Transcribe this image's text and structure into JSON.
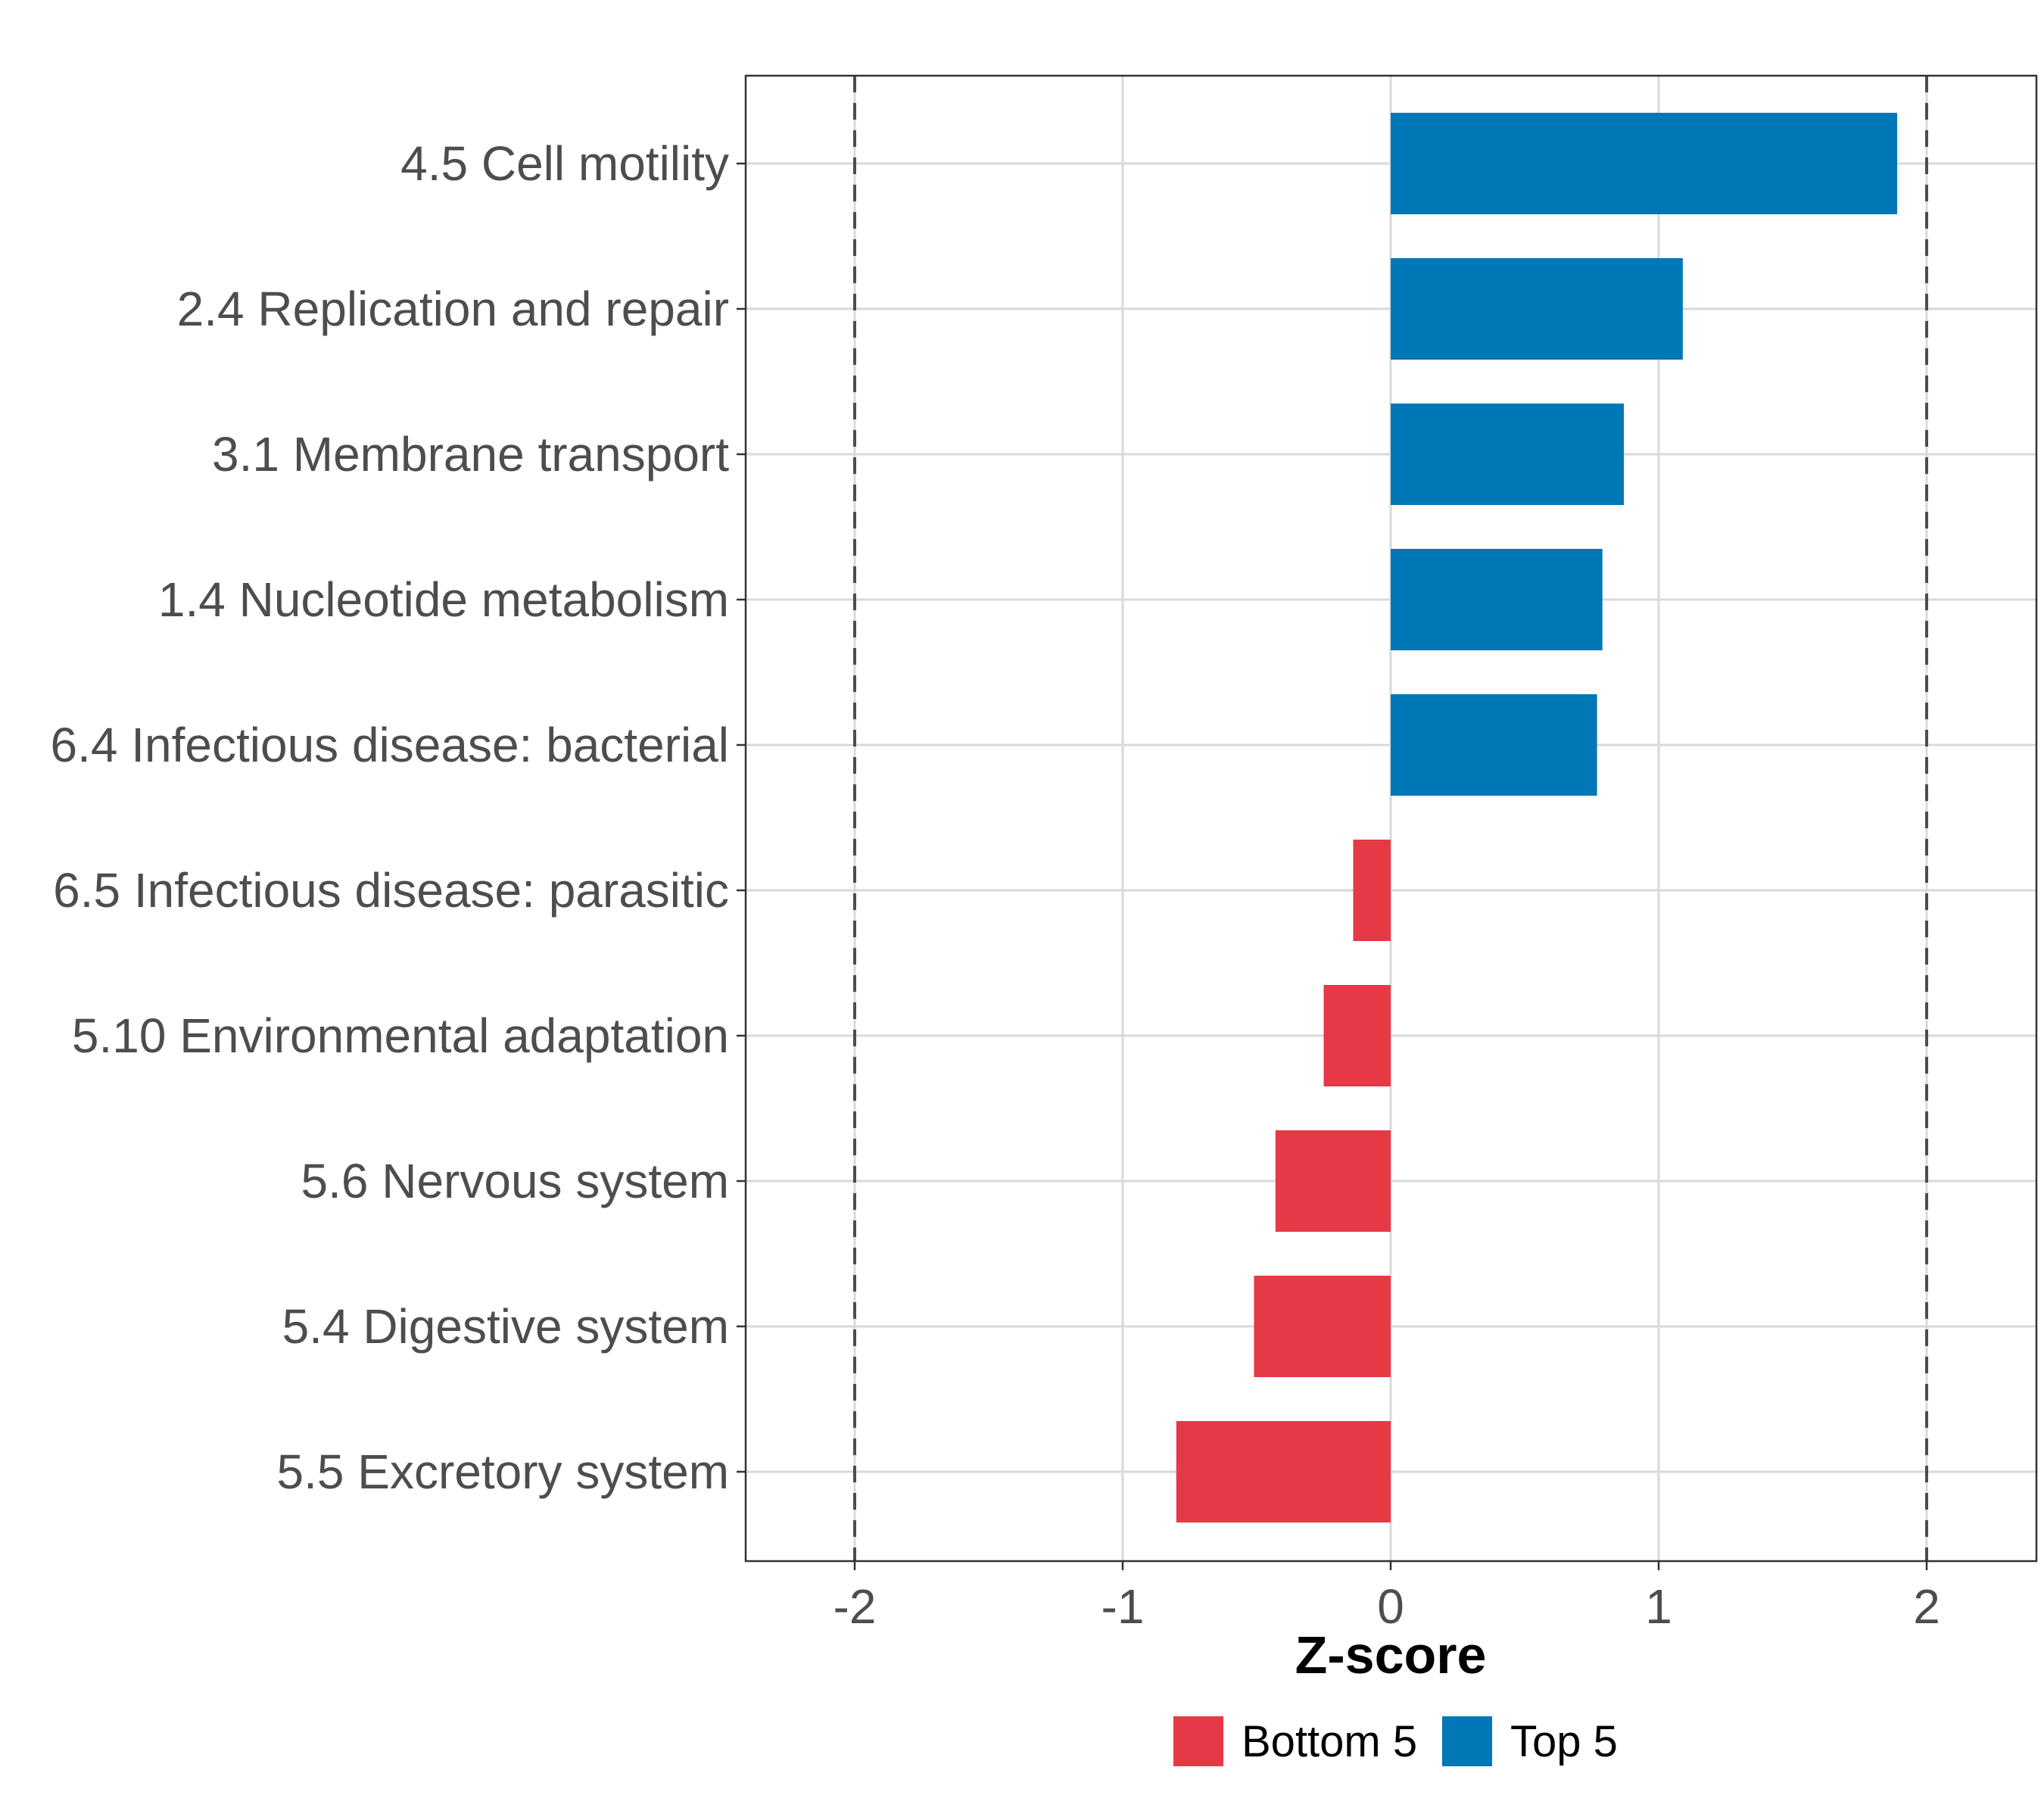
{
  "chart_data": {
    "type": "bar",
    "orientation": "horizontal",
    "title": "",
    "xlabel": "Z-score",
    "ylabel": "",
    "xlim": [
      -2.4,
      2.4
    ],
    "xticks": [
      "-2",
      "-1",
      "0",
      "1",
      "2"
    ],
    "xtick_values": [
      -2,
      -1,
      0,
      1,
      2
    ],
    "reference_lines": [
      -2,
      2
    ],
    "grid": true,
    "categories": [
      "4.5 Cell motility",
      "2.4 Replication and repair",
      "3.1 Membrane transport",
      "1.4 Nucleotide metabolism",
      "6.4 Infectious disease: bacterial",
      "6.5 Infectious disease: parasitic",
      "5.10 Environmental adaptation",
      "5.6 Nervous system",
      "5.4 Digestive system",
      "5.5 Excretory system"
    ],
    "values": [
      1.89,
      1.09,
      0.87,
      0.79,
      0.77,
      -0.14,
      -0.25,
      -0.43,
      -0.51,
      -0.8
    ],
    "groups": [
      "Top 5",
      "Top 5",
      "Top 5",
      "Top 5",
      "Top 5",
      "Bottom 5",
      "Bottom 5",
      "Bottom 5",
      "Bottom 5",
      "Bottom 5"
    ],
    "legend": {
      "position": "bottom",
      "entries": [
        {
          "label": "Bottom 5",
          "color": "#E63946"
        },
        {
          "label": "Top 5",
          "color": "#0077B6"
        }
      ]
    }
  },
  "colors": {
    "top": "#0077B6",
    "bottom": "#E63946",
    "grid": "#d9d9d9",
    "axis_text": "#4d4d4d",
    "ref_line": "#4d4d4d"
  }
}
